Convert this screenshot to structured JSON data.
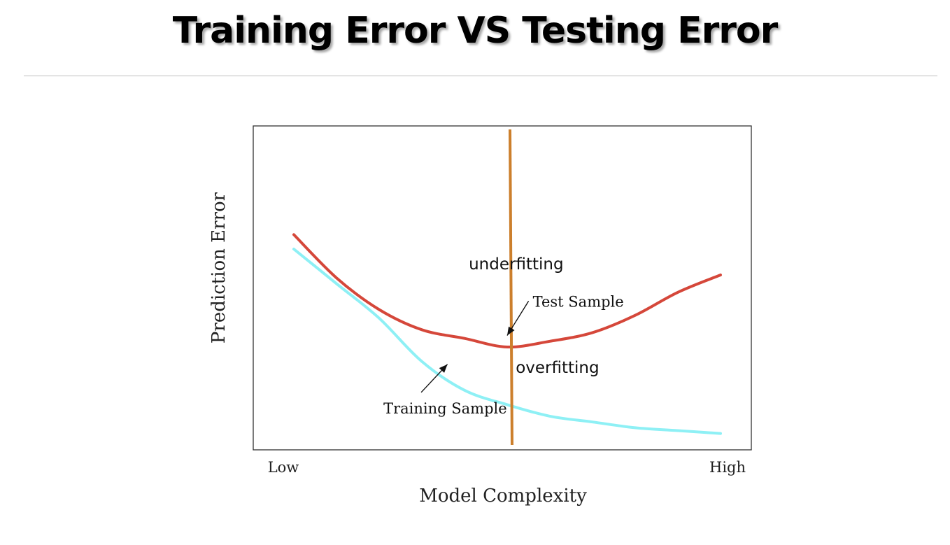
{
  "slide": {
    "title": "Training Error VS Testing Error"
  },
  "chart_data": {
    "type": "line",
    "xlabel": "Model Complexity",
    "ylabel": "Prediction Error",
    "x_tick_labels": [
      "Low",
      "High"
    ],
    "xlim": [
      0,
      1
    ],
    "ylim": [
      0,
      1
    ],
    "grid": false,
    "series": [
      {
        "name": "Test Sample",
        "color": "#d5473a",
        "x": [
          0.0,
          0.1,
          0.2,
          0.3,
          0.4,
          0.5,
          0.6,
          0.7,
          0.8,
          0.9,
          1.0
        ],
        "y": [
          0.72,
          0.57,
          0.46,
          0.39,
          0.36,
          0.33,
          0.35,
          0.38,
          0.44,
          0.52,
          0.58
        ]
      },
      {
        "name": "Training Sample",
        "color": "#8ef0f5",
        "x": [
          0.0,
          0.1,
          0.2,
          0.3,
          0.4,
          0.5,
          0.6,
          0.7,
          0.8,
          0.9,
          1.0
        ],
        "y": [
          0.67,
          0.55,
          0.43,
          0.28,
          0.18,
          0.13,
          0.09,
          0.07,
          0.05,
          0.04,
          0.03
        ]
      }
    ],
    "vertical_line": {
      "x": 0.5,
      "color": "#cc7f2c"
    },
    "annotations": [
      {
        "text": "Test Sample",
        "x": 0.56,
        "y": 0.47,
        "arrow_to": [
          0.5,
          0.37
        ]
      },
      {
        "text": "Training Sample",
        "x": 0.21,
        "y": 0.1,
        "arrow_to": [
          0.36,
          0.27
        ]
      },
      {
        "text": "underfitting",
        "x": 0.41,
        "y": 0.6
      },
      {
        "text": "overfitting",
        "x": 0.52,
        "y": 0.24
      }
    ]
  }
}
